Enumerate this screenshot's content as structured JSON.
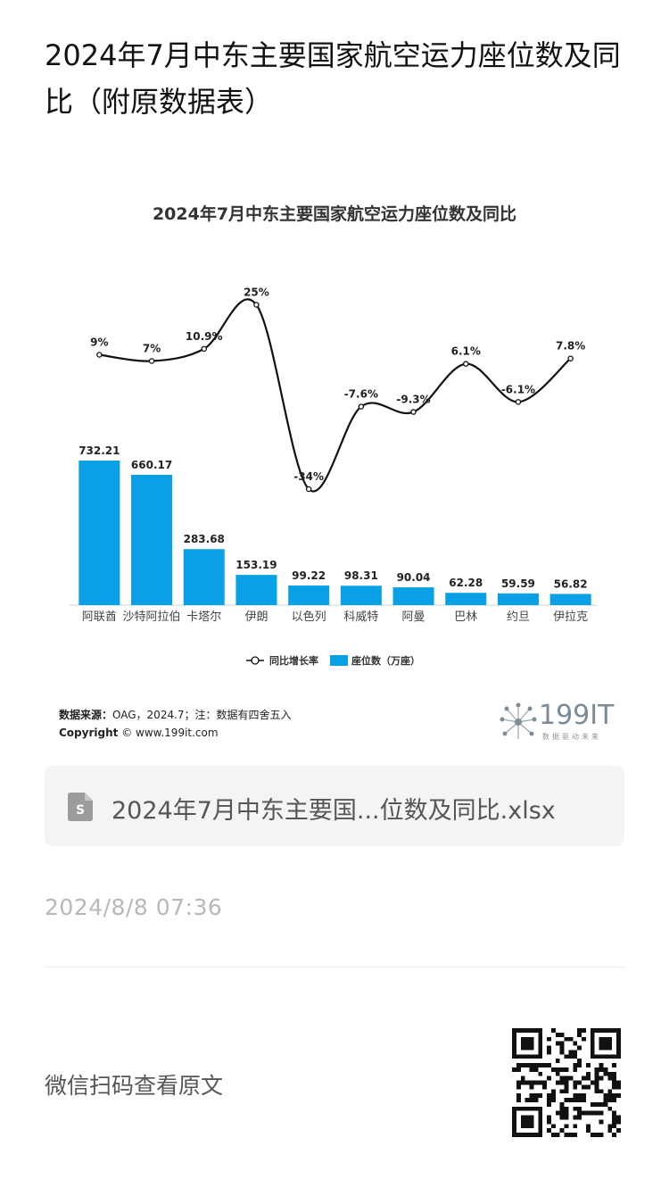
{
  "article": {
    "title": "2024年7月中东主要国家航空运力座位数及同比（附原数据表）"
  },
  "chart_data": {
    "type": "bar+line",
    "title": "2024年7月中东主要国家航空运力座位数及同比",
    "categories": [
      "阿联酋",
      "沙特阿拉伯",
      "卡塔尔",
      "伊朗",
      "以色列",
      "科威特",
      "阿曼",
      "巴林",
      "约旦",
      "伊拉克"
    ],
    "series": [
      {
        "name": "座位数（万座）",
        "type": "bar",
        "values": [
          732.21,
          660.17,
          283.68,
          153.19,
          99.22,
          98.31,
          90.04,
          62.28,
          59.59,
          56.82
        ],
        "labels": [
          "732.21",
          "660.17",
          "283.68",
          "153.19",
          "99.22",
          "98.31",
          "90.04",
          "62.28",
          "59.59",
          "56.82"
        ]
      },
      {
        "name": "同比增长率",
        "type": "line",
        "values": [
          9,
          7,
          10.9,
          25,
          -34,
          -7.6,
          -9.3,
          6.1,
          -6.1,
          7.8
        ],
        "labels": [
          "9%",
          "7%",
          "10.9%",
          "25%",
          "-34%",
          "-7.6%",
          "-9.3%",
          "6.1%",
          "-6.1%",
          "7.8%"
        ]
      }
    ],
    "legend_placement": "bottom-center",
    "colors": {
      "bar": "#0aa0e6",
      "line": "#111111"
    }
  },
  "footer": {
    "source_label": "数据来源：",
    "source_text": "OAG，2024.7；注：数据有四舍五入",
    "copyright_label": "Copyright",
    "copyright_text": "© www.199it.com",
    "logo_text": "199IT",
    "logo_tagline": "数据驱动未来"
  },
  "attachment": {
    "file_name": "2024年7月中东主要国...位数及同比.xlsx",
    "icon": "spreadsheet-file-icon"
  },
  "meta": {
    "date": "2024/8/8 07:36",
    "qr_hint": "微信扫码查看原文"
  }
}
